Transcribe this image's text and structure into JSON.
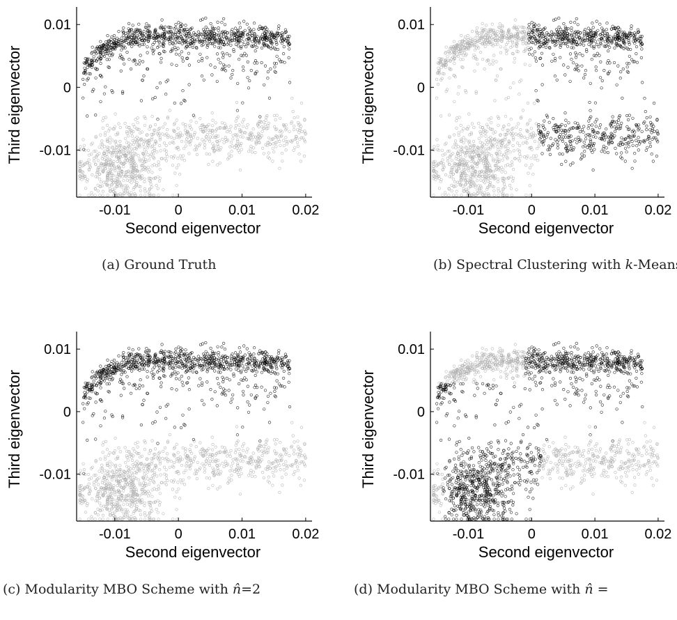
{
  "figure": {
    "captions": [
      "(a) Ground Truth",
      "(b) Spectral Clustering with k-Means",
      "(c) Modularity MBO Scheme with n̂=2",
      "(d) Modularity MBO Scheme with n̂ ="
    ]
  },
  "colors": {
    "cluster_dark": "#000000",
    "cluster_light": "#aaaaaa",
    "axis": "#000000"
  },
  "chart_data": [
    {
      "type": "scatter",
      "panel": "a",
      "caption": "(a) Ground Truth",
      "xlabel": "Second eigenvector",
      "ylabel": "Third eigenvector",
      "xlim": [
        -0.016,
        0.021
      ],
      "ylim": [
        -0.0175,
        0.0128
      ],
      "xticks": [
        -0.01,
        0,
        0.01,
        0.02
      ],
      "xtick_labels": [
        "-0.01",
        "0",
        "0.01",
        "0.02"
      ],
      "yticks": [
        -0.01,
        0,
        0.01
      ],
      "ytick_labels": [
        "-0.01",
        "0",
        "0.01"
      ],
      "marker": "hollow-circle",
      "rule": "truth",
      "series": [
        {
          "color": "#000000",
          "approx_points": 8000
        },
        {
          "color": "#aaaaaa",
          "approx_points": 8000
        }
      ]
    },
    {
      "type": "scatter",
      "panel": "b",
      "caption": "(b) Spectral Clustering with k-Means",
      "xlabel": "Second eigenvector",
      "ylabel": "Third eigenvector",
      "xlim": [
        -0.016,
        0.021
      ],
      "ylim": [
        -0.0175,
        0.0128
      ],
      "xticks": [
        -0.01,
        0,
        0.01,
        0.02
      ],
      "xtick_labels": [
        "-0.01",
        "0",
        "0.01",
        "0.02"
      ],
      "yticks": [
        -0.01,
        0,
        0.01
      ],
      "ytick_labels": [
        "-0.01",
        "0",
        "0.01"
      ],
      "marker": "hollow-circle",
      "rule": "kmeans",
      "series": [
        {
          "color": "#000000",
          "approx_points": 8000
        },
        {
          "color": "#aaaaaa",
          "approx_points": 8000
        }
      ]
    },
    {
      "type": "scatter",
      "panel": "c",
      "caption": "(c) Modularity MBO Scheme with n̂=2",
      "xlabel": "Second eigenvector",
      "ylabel": "Third eigenvector",
      "xlim": [
        -0.016,
        0.021
      ],
      "ylim": [
        -0.0175,
        0.0128
      ],
      "xticks": [
        -0.01,
        0,
        0.01,
        0.02
      ],
      "xtick_labels": [
        "-0.01",
        "0",
        "0.01",
        "0.02"
      ],
      "yticks": [
        -0.01,
        0,
        0.01
      ],
      "ytick_labels": [
        "-0.01",
        "0",
        "0.01"
      ],
      "marker": "hollow-circle",
      "rule": "mbo2",
      "series": [
        {
          "color": "#000000",
          "approx_points": 8000
        },
        {
          "color": "#aaaaaa",
          "approx_points": 8000
        }
      ]
    },
    {
      "type": "scatter",
      "panel": "d",
      "caption": "(d) Modularity MBO Scheme with n̂ =",
      "xlabel": "Second eigenvector",
      "ylabel": "Third eigenvector",
      "xlim": [
        -0.016,
        0.021
      ],
      "ylim": [
        -0.0175,
        0.0128
      ],
      "xticks": [
        -0.01,
        0,
        0.01,
        0.02
      ],
      "xtick_labels": [
        "-0.01",
        "0",
        "0.01",
        "0.02"
      ],
      "yticks": [
        -0.01,
        0,
        0.01
      ],
      "ytick_labels": [
        "-0.01",
        "0",
        "0.01"
      ],
      "marker": "hollow-circle",
      "rule": "mbo",
      "series": [
        {
          "color": "#000000",
          "approx_points": 8000
        },
        {
          "color": "#aaaaaa",
          "approx_points": 8000
        }
      ]
    }
  ]
}
